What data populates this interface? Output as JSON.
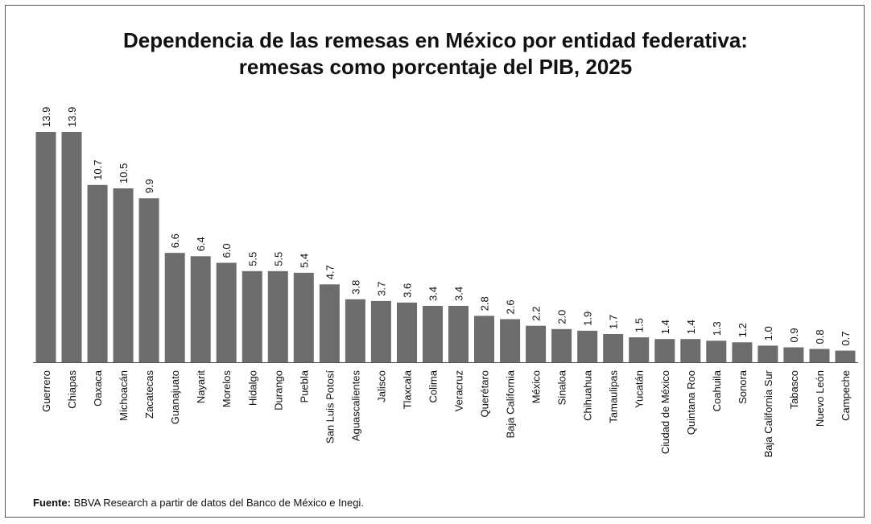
{
  "title": {
    "line1": "Dependencia de las remesas en México por entidad federativa:",
    "line2": "remesas como porcentaje del PIB, 2025"
  },
  "source": {
    "label": "Fuente:",
    "text": "BBVA Research a partir de datos del Banco de México e Inegi."
  },
  "colors": {
    "bar": "#6d6d6d",
    "axis": "#555555",
    "text": "#111111"
  },
  "chart_data": {
    "type": "bar",
    "title": "Dependencia de las remesas en México por entidad federativa: remesas como porcentaje del PIB, 2025",
    "xlabel": "",
    "ylabel": "",
    "ylim": [
      0,
      14
    ],
    "grid": false,
    "legend": "none",
    "categories": [
      "Guerrero",
      "Chiapas",
      "Oaxaca",
      "Michoacán",
      "Zacatecas",
      "Guanajuato",
      "Nayarit",
      "Morelos",
      "Hidalgo",
      "Durango",
      "Puebla",
      "San Luis Potosí",
      "Aguascalientes",
      "Jalisco",
      "Tlaxcala",
      "Colima",
      "Veracruz",
      "Querétaro",
      "Baja California",
      "México",
      "Sinaloa",
      "Chihuahua",
      "Tamaulipas",
      "Yucatán",
      "Ciudad de México",
      "Quintana Roo",
      "Coahuila",
      "Sonora",
      "Baja California Sur",
      "Tabasco",
      "Nuevo León",
      "Campeche"
    ],
    "values": [
      13.9,
      13.9,
      10.7,
      10.5,
      9.9,
      6.6,
      6.4,
      6.0,
      5.5,
      5.5,
      5.4,
      4.7,
      3.8,
      3.7,
      3.6,
      3.4,
      3.4,
      2.8,
      2.6,
      2.2,
      2.0,
      1.9,
      1.7,
      1.5,
      1.4,
      1.4,
      1.3,
      1.2,
      1.0,
      0.9,
      0.8,
      0.7
    ],
    "labels": [
      "13.9",
      "13.9",
      "10.7",
      "10.5",
      "9.9",
      "6.6",
      "6.4",
      "6.0",
      "5.5",
      "5.5",
      "5.4",
      "4.7",
      "3.8",
      "3.7",
      "3.6",
      "3.4",
      "3.4",
      "2.8",
      "2.6",
      "2.2",
      "2.0",
      "1.9",
      "1.7",
      "1.5",
      "1.4",
      "1.4",
      "1.3",
      "1.2",
      "1.0",
      "0.9",
      "0.8",
      "0.7"
    ]
  }
}
